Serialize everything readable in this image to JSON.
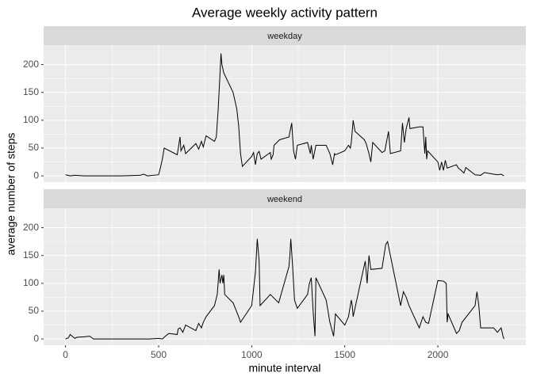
{
  "chart_data": {
    "type": "line",
    "title": "Average weekly activity pattern",
    "xlabel": "minute interval",
    "ylabel": "average number of steps",
    "xlim": [
      -117.75,
      2472.75
    ],
    "xticks": [
      0,
      500,
      1000,
      1500,
      2000
    ],
    "ylim": [
      -11.2,
      235
    ],
    "yticks": [
      0,
      50,
      100,
      150,
      200
    ],
    "grid": true,
    "color": "#000000",
    "facets": [
      {
        "name": "weekday",
        "x": [
          0,
          25,
          50,
          100,
          200,
          300,
          400,
          420,
          440,
          500,
          510,
          520,
          530,
          600,
          615,
          620,
          635,
          645,
          700,
          715,
          730,
          740,
          755,
          800,
          810,
          820,
          830,
          835,
          840,
          850,
          900,
          920,
          930,
          940,
          950,
          1000,
          1010,
          1020,
          1030,
          1040,
          1050,
          1100,
          1105,
          1115,
          1120,
          1150,
          1200,
          1215,
          1225,
          1235,
          1245,
          1300,
          1315,
          1320,
          1330,
          1345,
          1400,
          1420,
          1435,
          1445,
          1450,
          1500,
          1520,
          1530,
          1535,
          1545,
          1555,
          1605,
          1615,
          1630,
          1640,
          1650,
          1700,
          1715,
          1735,
          1745,
          1800,
          1810,
          1820,
          1830,
          1845,
          1850,
          1900,
          1920,
          1930,
          1935,
          1940,
          1945,
          2000,
          2010,
          2020,
          2030,
          2040,
          2050,
          2100,
          2110,
          2125,
          2140,
          2150,
          2200,
          2230,
          2250,
          2300,
          2320,
          2340,
          2355
        ],
        "values": [
          2,
          0,
          1,
          0,
          0,
          0,
          1,
          3,
          0,
          2,
          15,
          30,
          50,
          38,
          70,
          45,
          55,
          40,
          58,
          48,
          62,
          52,
          72,
          62,
          70,
          120,
          185,
          220,
          200,
          185,
          150,
          120,
          90,
          40,
          17,
          35,
          42,
          20,
          40,
          44,
          30,
          42,
          30,
          38,
          55,
          65,
          70,
          95,
          45,
          30,
          55,
          60,
          40,
          55,
          30,
          55,
          55,
          40,
          20,
          40,
          38,
          45,
          55,
          50,
          60,
          100,
          80,
          65,
          58,
          40,
          25,
          60,
          42,
          45,
          80,
          40,
          45,
          95,
          60,
          85,
          105,
          85,
          88,
          88,
          40,
          70,
          30,
          45,
          25,
          10,
          25,
          10,
          28,
          14,
          20,
          14,
          10,
          5,
          15,
          2,
          1,
          6,
          3,
          2,
          3,
          0
        ]
      },
      {
        "name": "weekend",
        "x": [
          0,
          15,
          25,
          50,
          60,
          100,
          130,
          150,
          200,
          300,
          400,
          450,
          500,
          520,
          540,
          555,
          600,
          605,
          615,
          630,
          645,
          700,
          715,
          730,
          740,
          755,
          800,
          815,
          825,
          830,
          840,
          845,
          850,
          855,
          900,
          930,
          940,
          1000,
          1020,
          1030,
          1040,
          1045,
          1100,
          1130,
          1145,
          1200,
          1205,
          1210,
          1220,
          1230,
          1245,
          1300,
          1310,
          1320,
          1330,
          1340,
          1345,
          1400,
          1420,
          1440,
          1450,
          1500,
          1520,
          1530,
          1535,
          1540,
          1545,
          1600,
          1610,
          1620,
          1630,
          1640,
          1700,
          1720,
          1730,
          1745,
          1800,
          1815,
          1830,
          1845,
          1900,
          1920,
          1935,
          1950,
          2000,
          2030,
          2045,
          2050,
          2055,
          2100,
          2115,
          2130,
          2200,
          2210,
          2220,
          2230,
          2300,
          2320,
          2340,
          2350,
          2355
        ],
        "values": [
          0,
          2,
          8,
          1,
          3,
          4,
          5,
          0,
          0,
          0,
          0,
          0,
          1,
          0,
          6,
          10,
          8,
          18,
          20,
          12,
          25,
          15,
          28,
          20,
          30,
          40,
          60,
          80,
          125,
          100,
          115,
          100,
          115,
          80,
          65,
          40,
          30,
          60,
          120,
          180,
          140,
          60,
          80,
          70,
          65,
          130,
          150,
          180,
          130,
          70,
          55,
          80,
          100,
          110,
          50,
          5,
          110,
          70,
          30,
          5,
          45,
          25,
          40,
          60,
          70,
          60,
          40,
          125,
          140,
          100,
          150,
          125,
          127,
          170,
          175,
          150,
          60,
          85,
          75,
          60,
          20,
          40,
          30,
          28,
          105,
          104,
          100,
          30,
          45,
          10,
          15,
          30,
          60,
          85,
          60,
          20,
          20,
          12,
          20,
          5,
          0
        ]
      }
    ]
  }
}
